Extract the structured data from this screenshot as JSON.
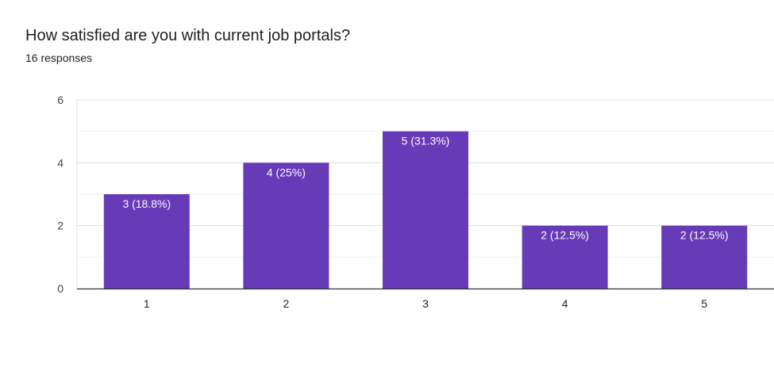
{
  "chart_data": {
    "type": "bar",
    "title": "How satisfied are you with current job portals?",
    "subtitle": "16 responses",
    "categories": [
      "1",
      "2",
      "3",
      "4",
      "5"
    ],
    "values": [
      3,
      4,
      5,
      2,
      2
    ],
    "data_labels": [
      "3 (18.8%)",
      "4 (25%)",
      "5 (31.3%)",
      "2 (12.5%)",
      "2 (12.5%)"
    ],
    "ylim": [
      0,
      6
    ],
    "yticks": [
      0,
      2,
      4,
      6
    ],
    "xlabel": "",
    "ylabel": "",
    "grid": true,
    "bar_color": "#673ab7",
    "label_color": "#ffffff"
  }
}
